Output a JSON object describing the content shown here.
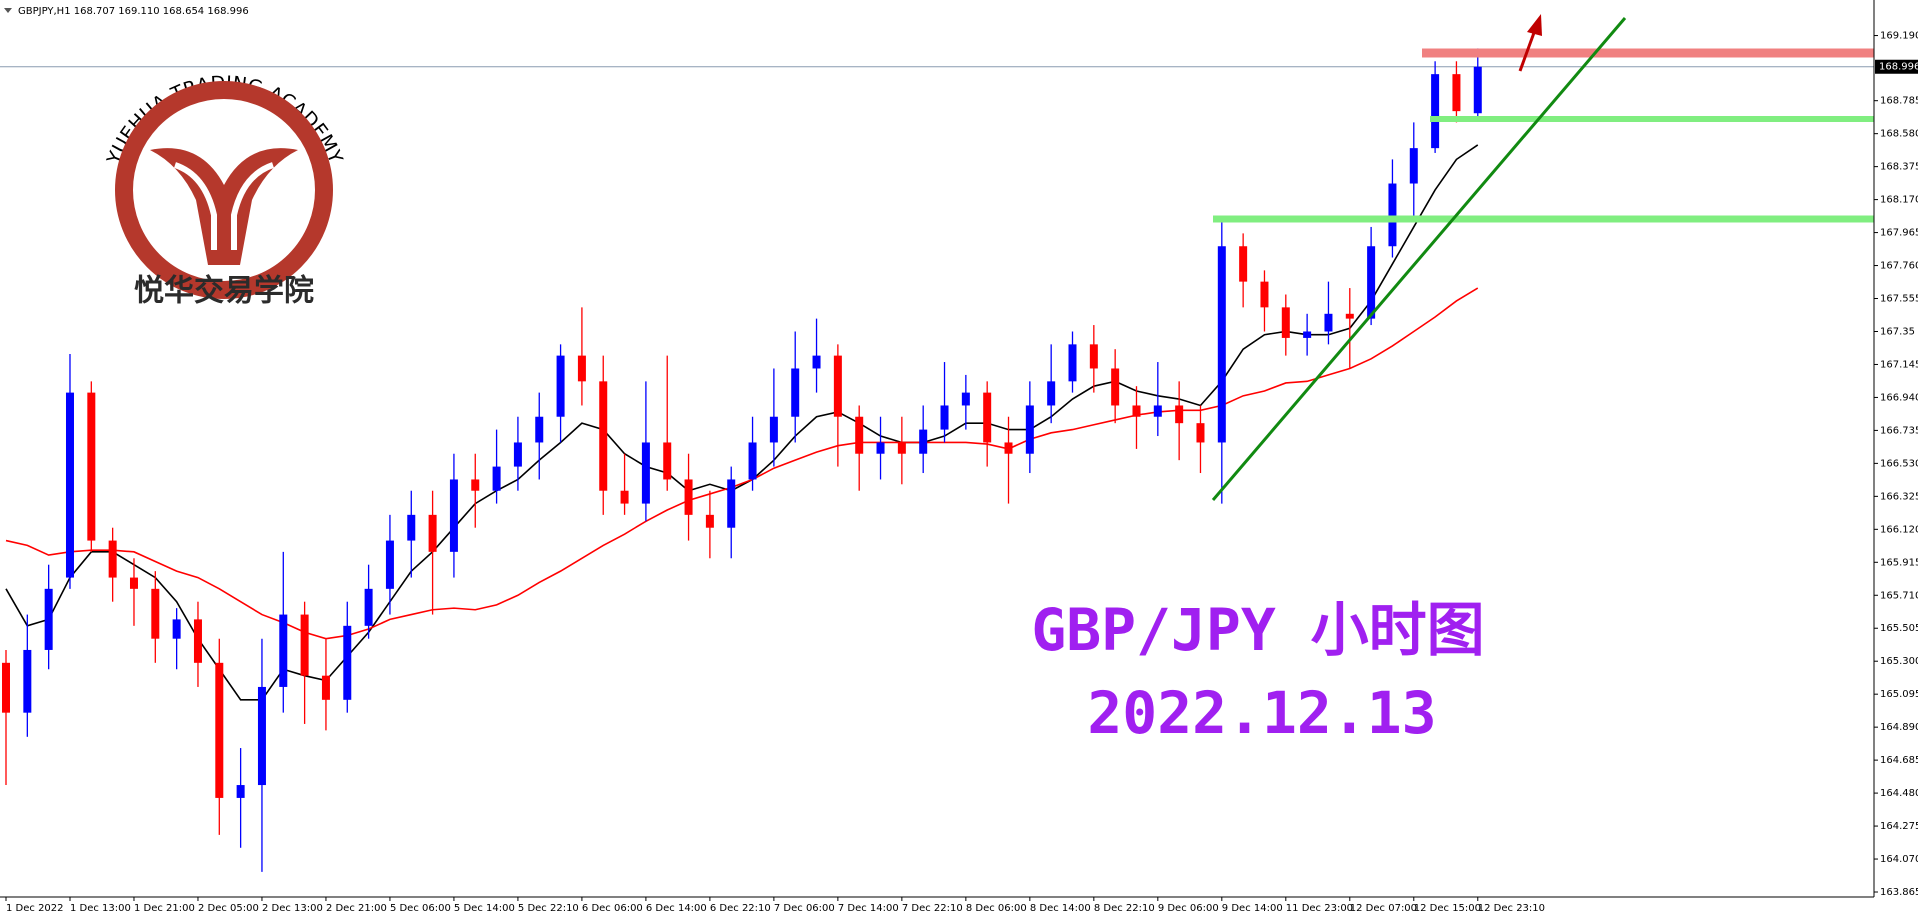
{
  "chart_data": {
    "type": "candlestick",
    "title": "GBPJPY,H1  168.707 169.110 168.654 168.996",
    "annotations": [
      "GBP/JPY 小时图",
      "2022.12.13"
    ],
    "up_color": "#0000ff",
    "down_color": "#ff0000",
    "price_label": 168.996,
    "categories": [
      "1 Dec 2022",
      null,
      null,
      "1 Dec 13:00",
      null,
      null,
      "1 Dec 21:00",
      null,
      null,
      "2 Dec 05:00",
      null,
      null,
      "2 Dec 13:00",
      null,
      null,
      "2 Dec 21:00",
      null,
      null,
      "5 Dec 06:00",
      null,
      null,
      "5 Dec 14:00",
      null,
      null,
      "5 Dec 22:10",
      null,
      null,
      "6 Dec 06:00",
      null,
      null,
      "6 Dec 14:00",
      null,
      null,
      "6 Dec 22:10",
      null,
      null,
      "7 Dec 06:00",
      null,
      null,
      "7 Dec 14:00",
      null,
      null,
      "7 Dec 22:10",
      null,
      null,
      "8 Dec 06:00",
      null,
      null,
      "8 Dec 14:00",
      null,
      null,
      "8 Dec 22:10",
      null,
      null,
      "9 Dec 06:00",
      null,
      null,
      "9 Dec 14:00",
      null,
      null,
      "11 Dec 23:00",
      null,
      null,
      "12 Dec 07:00",
      null,
      null,
      "12 Dec 15:00",
      null,
      null,
      "12 Dec 23:10"
    ],
    "open": [
      165.29,
      164.98,
      165.37,
      165.82,
      166.97,
      166.05,
      165.82,
      165.75,
      165.44,
      165.56,
      165.29,
      164.45,
      164.53,
      165.14,
      165.59,
      165.21,
      165.06,
      165.52,
      165.75,
      166.05,
      166.21,
      165.98,
      166.43,
      166.36,
      166.51,
      166.66,
      166.82,
      167.2,
      167.04,
      166.36,
      166.28,
      166.66,
      166.43,
      166.21,
      166.13,
      166.43,
      166.66,
      166.82,
      167.12,
      167.2,
      166.82,
      166.59,
      166.66,
      166.59,
      166.74,
      166.89,
      166.97,
      166.66,
      166.59,
      166.89,
      167.04,
      167.27,
      167.12,
      166.89,
      166.82,
      166.89,
      166.78,
      166.66,
      167.88,
      167.66,
      167.5,
      167.31,
      167.35,
      167.46,
      167.43,
      167.88,
      168.27,
      168.49,
      168.95,
      168.707
    ],
    "high": [
      165.37,
      165.59,
      165.9,
      167.21,
      167.04,
      166.13,
      165.94,
      165.86,
      165.63,
      165.67,
      165.44,
      164.76,
      165.44,
      165.98,
      165.67,
      165.44,
      165.67,
      165.9,
      166.21,
      166.36,
      166.36,
      166.59,
      166.59,
      166.74,
      166.82,
      166.97,
      167.27,
      167.5,
      167.2,
      166.59,
      167.04,
      167.2,
      166.59,
      166.36,
      166.51,
      166.82,
      167.12,
      167.35,
      167.43,
      167.27,
      166.89,
      166.82,
      166.82,
      166.89,
      167.16,
      167.08,
      167.04,
      166.82,
      167.04,
      167.27,
      167.35,
      167.39,
      167.24,
      167.01,
      167.16,
      167.04,
      166.89,
      168.07,
      167.96,
      167.73,
      167.58,
      167.46,
      167.66,
      167.62,
      168.0,
      168.42,
      168.65,
      169.03,
      169.03,
      169.11
    ],
    "low": [
      164.53,
      164.83,
      165.25,
      165.75,
      165.98,
      165.67,
      165.52,
      165.29,
      165.25,
      165.14,
      164.22,
      164.14,
      163.99,
      164.98,
      164.91,
      164.87,
      164.98,
      165.44,
      165.59,
      165.82,
      165.59,
      165.82,
      166.13,
      166.28,
      166.36,
      166.43,
      166.66,
      166.89,
      166.21,
      166.21,
      166.17,
      166.36,
      166.05,
      165.94,
      165.94,
      166.36,
      166.51,
      166.66,
      166.97,
      166.51,
      166.36,
      166.43,
      166.4,
      166.47,
      166.66,
      166.74,
      166.51,
      166.28,
      166.47,
      166.78,
      166.97,
      166.97,
      166.78,
      166.62,
      166.7,
      166.55,
      166.47,
      166.28,
      167.5,
      167.35,
      167.2,
      167.2,
      167.27,
      167.12,
      167.39,
      167.81,
      168.07,
      168.46,
      168.65,
      168.654
    ],
    "close": [
      164.98,
      165.37,
      165.75,
      166.97,
      166.05,
      165.82,
      165.75,
      165.44,
      165.56,
      165.29,
      164.45,
      164.53,
      165.14,
      165.59,
      165.21,
      165.06,
      165.52,
      165.75,
      166.05,
      166.21,
      165.98,
      166.43,
      166.36,
      166.51,
      166.66,
      166.82,
      167.2,
      167.04,
      166.36,
      166.28,
      166.66,
      166.43,
      166.21,
      166.13,
      166.43,
      166.66,
      166.82,
      167.12,
      167.2,
      166.82,
      166.59,
      166.66,
      166.59,
      166.74,
      166.89,
      166.97,
      166.66,
      166.59,
      166.89,
      167.04,
      167.27,
      167.12,
      166.89,
      166.82,
      166.89,
      166.78,
      166.66,
      167.88,
      167.66,
      167.5,
      167.31,
      167.35,
      167.46,
      167.43,
      167.88,
      168.27,
      168.49,
      168.95,
      168.72,
      168.996
    ],
    "series": [
      {
        "color": "#000000",
        "values": [
          165.75,
          165.52,
          165.56,
          165.82,
          165.98,
          165.98,
          165.9,
          165.82,
          165.67,
          165.44,
          165.25,
          165.06,
          165.06,
          165.25,
          165.21,
          165.18,
          165.33,
          165.48,
          165.67,
          165.86,
          165.98,
          166.13,
          166.28,
          166.36,
          166.43,
          166.55,
          166.66,
          166.78,
          166.74,
          166.59,
          166.51,
          166.47,
          166.36,
          166.4,
          166.36,
          166.43,
          166.55,
          166.7,
          166.82,
          166.85,
          166.78,
          166.7,
          166.66,
          166.66,
          166.7,
          166.78,
          166.78,
          166.74,
          166.74,
          166.82,
          166.93,
          167.01,
          167.04,
          166.98,
          166.95,
          166.93,
          166.89,
          167.04,
          167.24,
          167.33,
          167.35,
          167.33,
          167.33,
          167.37,
          167.54,
          167.77,
          168.0,
          168.23,
          168.42,
          168.51
        ]
      },
      {
        "color": "#ff0000",
        "values": [
          166.05,
          166.02,
          165.96,
          165.98,
          165.99,
          165.99,
          165.98,
          165.92,
          165.86,
          165.82,
          165.75,
          165.67,
          165.59,
          165.54,
          165.48,
          165.44,
          165.46,
          165.5,
          165.56,
          165.59,
          165.62,
          165.63,
          165.62,
          165.65,
          165.71,
          165.79,
          165.86,
          165.94,
          166.02,
          166.09,
          166.17,
          166.24,
          166.3,
          166.34,
          166.38,
          166.43,
          166.5,
          166.55,
          166.6,
          166.64,
          166.66,
          166.66,
          166.66,
          166.66,
          166.66,
          166.66,
          166.65,
          166.62,
          166.68,
          166.72,
          166.74,
          166.77,
          166.8,
          166.83,
          166.85,
          166.86,
          166.86,
          166.89,
          166.95,
          166.98,
          167.03,
          167.04,
          167.08,
          167.12,
          167.18,
          167.26,
          167.35,
          167.44,
          167.54,
          167.62
        ]
      }
    ],
    "ylim": [
      163.834,
      169.411
    ],
    "yticks": [
      {
        "value": 163.865,
        "label": "163.865"
      },
      {
        "value": 164.07,
        "label": "164.070"
      },
      164.275,
      {
        "value": 164.48,
        "label": "164.480"
      },
      164.685,
      {
        "value": 164.89,
        "label": "164.890"
      },
      165.095,
      {
        "value": 165.3,
        "label": "165.300"
      },
      165.505,
      {
        "value": 165.71,
        "label": "165.710"
      },
      165.915,
      {
        "value": 166.12,
        "label": "166.120"
      },
      166.325,
      {
        "value": 166.53,
        "label": "166.530"
      },
      166.735,
      {
        "value": 166.94,
        "label": "166.940"
      },
      167.145,
      167.35,
      167.555,
      {
        "value": 167.76,
        "label": "167.760"
      },
      167.965,
      {
        "value": 168.17,
        "label": "168.170"
      },
      168.375,
      {
        "value": 168.58,
        "label": "168.580"
      },
      168.785,
      {
        "value": 169.19,
        "label": "169.190"
      }
    ]
  },
  "logo": {
    "arc_text": "YUEHUA TRADING ACADEMY",
    "name": "悦华交易学院"
  }
}
